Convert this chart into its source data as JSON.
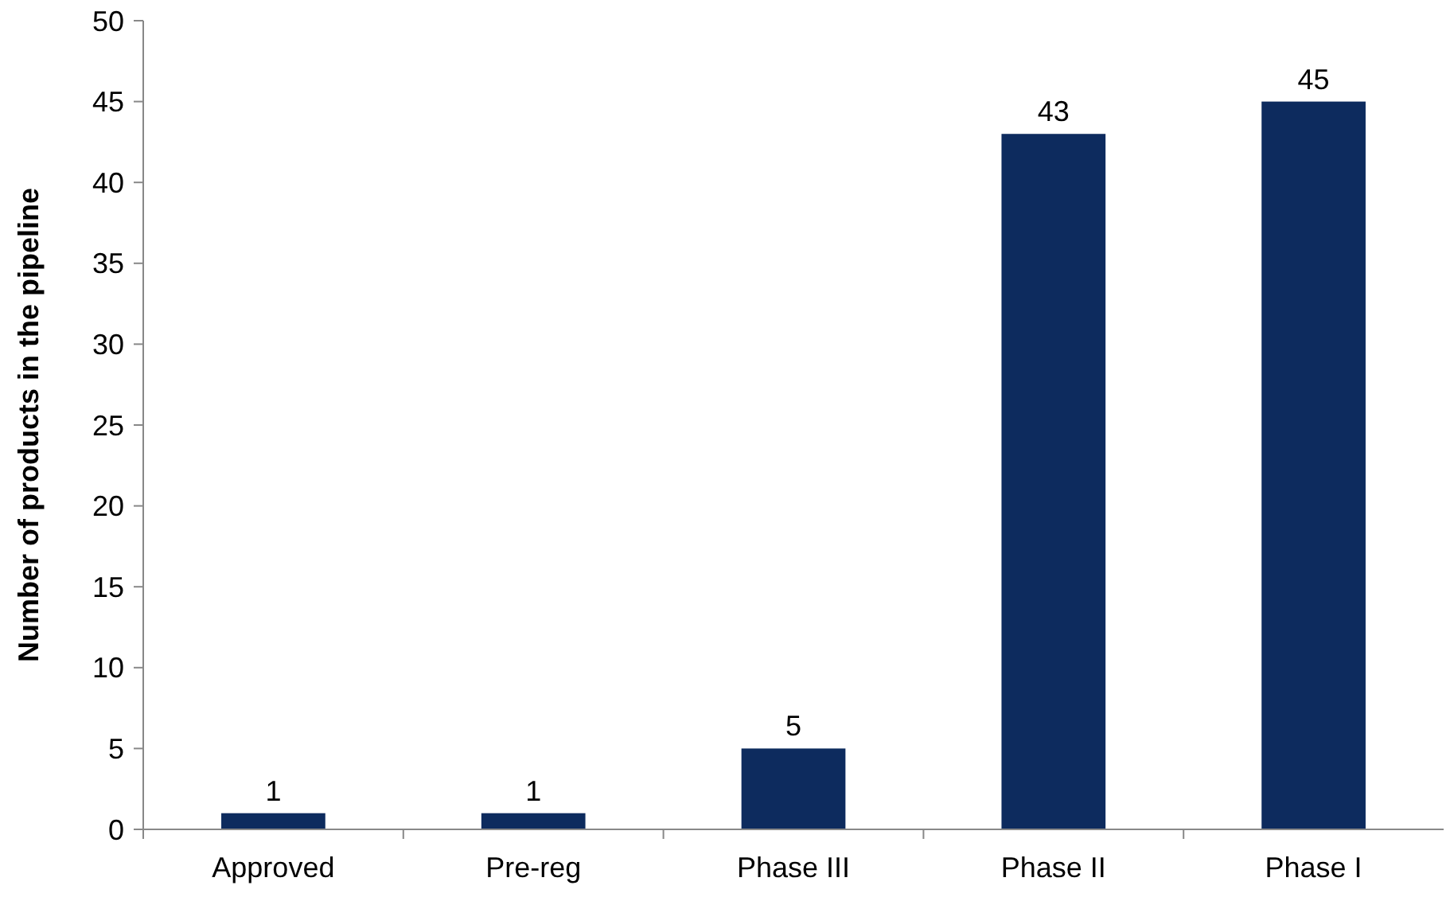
{
  "chart_data": {
    "type": "bar",
    "ylabel": "Number of products in the pipeline",
    "categories": [
      "Approved",
      "Pre-reg",
      "Phase III",
      "Phase II",
      "Phase I"
    ],
    "values": [
      1,
      1,
      5,
      43,
      45
    ],
    "color": "#0d2b5e",
    "ylim": [
      0,
      50
    ],
    "yticks": [
      0,
      5,
      10,
      15,
      20,
      25,
      30,
      35,
      40,
      45,
      50
    ],
    "grid": false,
    "data_labels": true
  }
}
